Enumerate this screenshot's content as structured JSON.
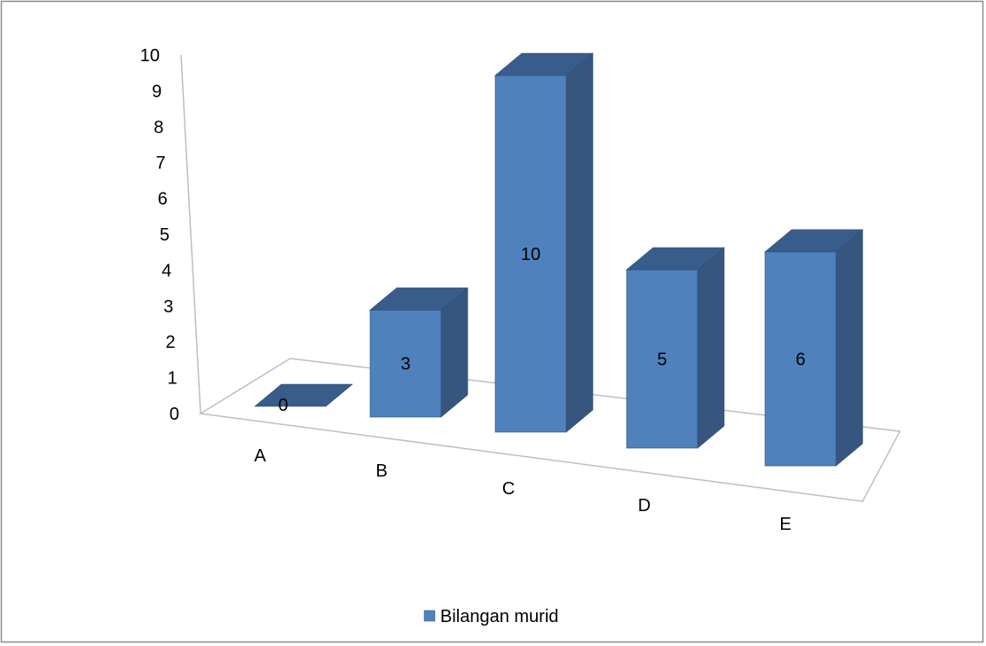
{
  "chart_data": {
    "type": "bar",
    "title": "",
    "xlabel": "",
    "ylabel": "",
    "categories": [
      "A",
      "B",
      "C",
      "D",
      "E"
    ],
    "series": [
      {
        "name": "Bilangan murid",
        "values": [
          0,
          3,
          10,
          5,
          6
        ]
      }
    ],
    "data_labels": [
      "0",
      "3",
      "10",
      "5",
      "6"
    ],
    "y_ticks": [
      "0",
      "1",
      "2",
      "3",
      "4",
      "5",
      "6",
      "7",
      "8",
      "9",
      "10"
    ],
    "ylim": [
      0,
      10
    ],
    "grid": false,
    "legend": {
      "position": "bottom",
      "entries": [
        "Bilangan murid"
      ]
    },
    "colors": {
      "bar_front": "#4f81bd",
      "bar_top": "#395d8a",
      "bar_side": "#37567f",
      "edge": "#2f4f77",
      "axis_line": "#bfbfbf",
      "frame": "#8c8c8c"
    }
  }
}
